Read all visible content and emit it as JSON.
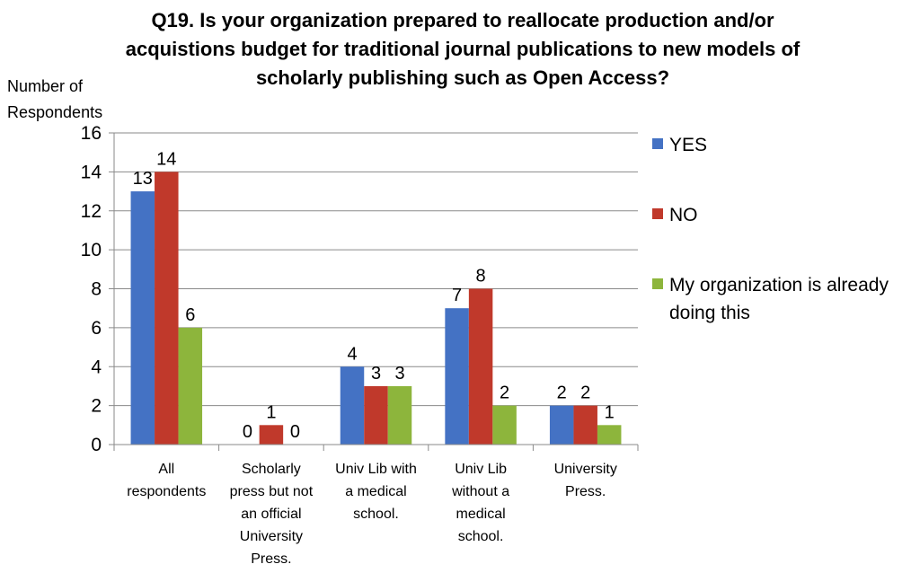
{
  "chart_data": {
    "type": "bar",
    "title_lines": [
      "Q19.  Is your organization prepared to reallocate production and/or",
      "acquistions budget for traditional journal publications to new models of",
      "scholarly publishing such as Open Access?"
    ],
    "ylabel_lines": [
      "Number of",
      "Respondents"
    ],
    "ylim": [
      0,
      16
    ],
    "yticks": [
      "0",
      "2",
      "4",
      "6",
      "8",
      "10",
      "12",
      "14",
      "16"
    ],
    "grid": true,
    "legend_position": "right",
    "categories": [
      [
        "All",
        "respondents"
      ],
      [
        "Scholarly",
        "press but not",
        "an official",
        "University",
        "Press."
      ],
      [
        "Univ Lib with",
        "a medical",
        "school."
      ],
      [
        "Univ Lib",
        "without a",
        "medical",
        "school."
      ],
      [
        "University",
        "Press."
      ]
    ],
    "series": [
      {
        "name": "YES",
        "color": "#4472C4",
        "values": [
          13,
          0,
          4,
          7,
          2
        ]
      },
      {
        "name": "NO",
        "color": "#C0392B",
        "values": [
          14,
          1,
          3,
          8,
          2
        ]
      },
      {
        "name_lines": [
          "My organization is already",
          "doing this"
        ],
        "color": "#8DB53C",
        "values": [
          6,
          0,
          3,
          2,
          1
        ]
      }
    ]
  }
}
